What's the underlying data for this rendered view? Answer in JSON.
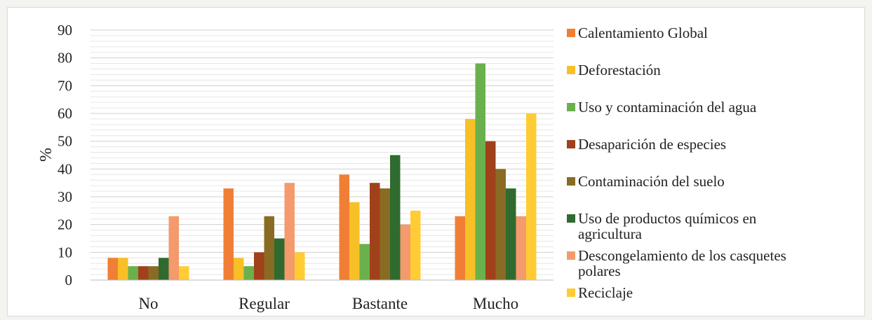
{
  "chart_data": {
    "type": "bar",
    "title": "",
    "xlabel": "",
    "ylabel": "%",
    "ylim": [
      0,
      90
    ],
    "yticks": [
      0,
      10,
      20,
      30,
      40,
      50,
      60,
      70,
      80,
      90
    ],
    "grid": true,
    "legend_position": "right",
    "categories": [
      "No",
      "Regular",
      "Bastante",
      "Mucho"
    ],
    "series": [
      {
        "name": "Calentamiento Global",
        "color": "#f07f35",
        "values": [
          8,
          33,
          38,
          23
        ]
      },
      {
        "name": "Deforestación",
        "color": "#f7c026",
        "values": [
          8,
          8,
          28,
          58
        ]
      },
      {
        "name": "Uso y contaminación del agua",
        "color": "#6ab04c",
        "values": [
          5,
          5,
          13,
          78
        ]
      },
      {
        "name": "Desaparición de especies",
        "color": "#a0411b",
        "values": [
          5,
          10,
          35,
          50
        ]
      },
      {
        "name": "Contaminación del suelo",
        "color": "#8a6b24",
        "values": [
          5,
          23,
          33,
          40
        ]
      },
      {
        "name": "Uso de productos químicos en agricultura",
        "color": "#2f6b2f",
        "values": [
          8,
          15,
          45,
          33
        ]
      },
      {
        "name": "Descongelamiento de los casquetes polares",
        "color": "#f49a6c",
        "values": [
          23,
          35,
          20,
          23
        ]
      },
      {
        "name": "Reciclaje",
        "color": "#ffcc33",
        "values": [
          5,
          10,
          25,
          60
        ]
      }
    ]
  }
}
